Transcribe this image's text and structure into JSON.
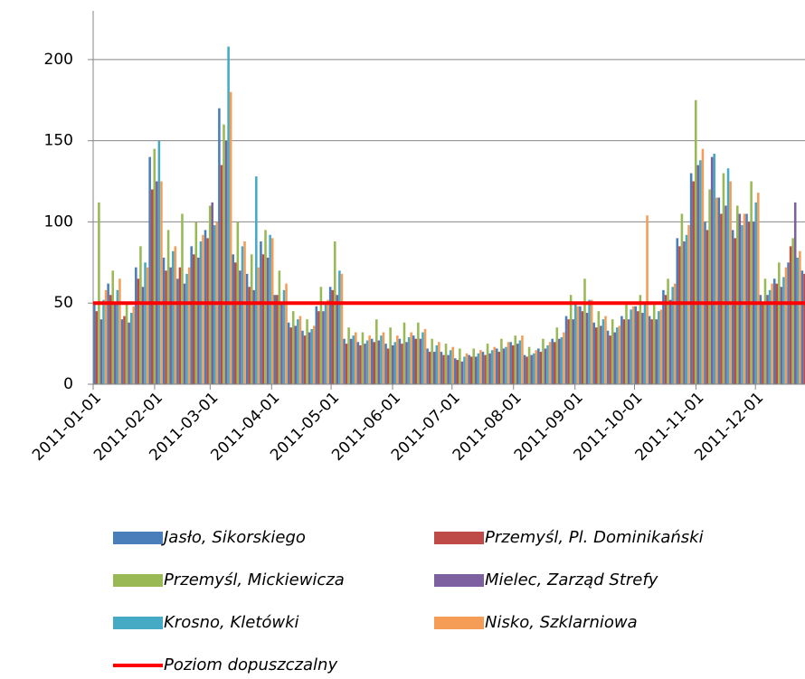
{
  "chart_data": {
    "type": "bar",
    "x": [
      "2011-01-01",
      "2011-01-08",
      "2011-01-15",
      "2011-01-22",
      "2011-01-29",
      "2011-02-05",
      "2011-02-12",
      "2011-02-19",
      "2011-02-26",
      "2011-03-05",
      "2011-03-12",
      "2011-03-19",
      "2011-03-26",
      "2011-04-02",
      "2011-04-09",
      "2011-04-16",
      "2011-04-23",
      "2011-04-30",
      "2011-05-07",
      "2011-05-14",
      "2011-05-21",
      "2011-05-28",
      "2011-06-04",
      "2011-06-11",
      "2011-06-18",
      "2011-06-25",
      "2011-07-02",
      "2011-07-09",
      "2011-07-16",
      "2011-07-23",
      "2011-07-30",
      "2011-08-06",
      "2011-08-13",
      "2011-08-20",
      "2011-08-27",
      "2011-09-03",
      "2011-09-10",
      "2011-09-17",
      "2011-09-24",
      "2011-10-01",
      "2011-10-08",
      "2011-10-15",
      "2011-10-22",
      "2011-10-29",
      "2011-11-05",
      "2011-11-12",
      "2011-11-19",
      "2011-11-26",
      "2011-12-03",
      "2011-12-10",
      "2011-12-17",
      "2011-12-24"
    ],
    "series": [
      {
        "name": "Jasło, Sikorskiego",
        "color": "#4a7ebb",
        "values": [
          50,
          62,
          40,
          72,
          140,
          78,
          65,
          85,
          95,
          170,
          80,
          68,
          88,
          55,
          38,
          33,
          48,
          60,
          28,
          26,
          28,
          25,
          28,
          30,
          22,
          20,
          16,
          18,
          20,
          22,
          26,
          18,
          22,
          28,
          42,
          48,
          38,
          33,
          42,
          48,
          42,
          58,
          90,
          130,
          100,
          115,
          95,
          105,
          55,
          65,
          75,
          70
        ]
      },
      {
        "name": "Przemyśl, Pl. Dominikański",
        "color": "#be4b48",
        "values": [
          45,
          55,
          42,
          65,
          120,
          70,
          72,
          80,
          90,
          135,
          75,
          60,
          80,
          55,
          35,
          30,
          45,
          58,
          25,
          24,
          26,
          22,
          25,
          28,
          20,
          18,
          15,
          17,
          18,
          20,
          24,
          17,
          20,
          26,
          40,
          45,
          35,
          30,
          40,
          45,
          40,
          55,
          85,
          125,
          95,
          105,
          90,
          100,
          50,
          62,
          85,
          68
        ]
      },
      {
        "name": "Przemyśl, Mickiewicza",
        "color": "#98b954",
        "values": [
          112,
          70,
          50,
          85,
          145,
          95,
          105,
          100,
          110,
          160,
          100,
          80,
          95,
          70,
          45,
          40,
          60,
          88,
          35,
          32,
          40,
          35,
          38,
          38,
          28,
          25,
          22,
          22,
          25,
          28,
          30,
          23,
          28,
          35,
          55,
          65,
          45,
          40,
          50,
          55,
          50,
          65,
          105,
          175,
          120,
          130,
          110,
          125,
          65,
          75,
          90,
          80
        ]
      },
      {
        "name": "Mielec, Zarząd Strefy",
        "color": "#7d60a0",
        "values": [
          40,
          50,
          38,
          60,
          125,
          72,
          62,
          78,
          112,
          150,
          70,
          58,
          78,
          50,
          36,
          32,
          45,
          55,
          28,
          25,
          27,
          24,
          26,
          28,
          20,
          18,
          14,
          17,
          19,
          22,
          25,
          18,
          22,
          28,
          40,
          44,
          36,
          32,
          40,
          44,
          40,
          52,
          88,
          135,
          140,
          110,
          105,
          100,
          55,
          60,
          112,
          128
        ]
      },
      {
        "name": "Krosno, Kletówki",
        "color": "#46aac5",
        "values": [
          52,
          58,
          44,
          75,
          150,
          82,
          68,
          88,
          98,
          208,
          85,
          128,
          92,
          58,
          40,
          34,
          50,
          70,
          30,
          27,
          30,
          26,
          29,
          32,
          24,
          21,
          17,
          19,
          21,
          23,
          27,
          19,
          24,
          29,
          50,
          52,
          40,
          35,
          46,
          50,
          45,
          60,
          92,
          138,
          142,
          133,
          98,
          112,
          58,
          66,
          78,
          100
        ]
      },
      {
        "name": "Nisko, Szklarniowa",
        "color": "#f59d56",
        "values": [
          58,
          65,
          48,
          72,
          125,
          85,
          72,
          92,
          100,
          180,
          88,
          72,
          90,
          62,
          42,
          36,
          52,
          68,
          32,
          30,
          32,
          30,
          32,
          34,
          26,
          23,
          19,
          21,
          23,
          26,
          30,
          21,
          26,
          32,
          48,
          52,
          42,
          36,
          48,
          104,
          46,
          62,
          98,
          145,
          115,
          125,
          105,
          118,
          62,
          72,
          82,
          78
        ]
      }
    ],
    "threshold": {
      "name": "Poziom dopuszczalny",
      "value": 50,
      "color": "#ff0000"
    },
    "xlim": [
      "2011-01-01",
      "2011-12-26"
    ],
    "xticks": [
      "2011-01-01",
      "2011-02-01",
      "2011-03-01",
      "2011-04-01",
      "2011-05-01",
      "2011-06-01",
      "2011-07-01",
      "2011-08-01",
      "2011-09-01",
      "2011-10-01",
      "2011-11-01",
      "2011-12-01"
    ],
    "ylim": [
      0,
      230
    ],
    "yticks": [
      0,
      50,
      100,
      150,
      200
    ],
    "grid": true
  }
}
